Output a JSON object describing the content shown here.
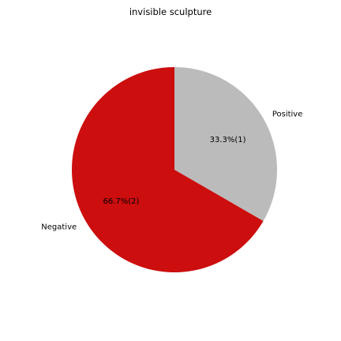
{
  "chart_data": {
    "type": "pie",
    "title": "invisible sculpture",
    "slices": [
      {
        "label": "Positive",
        "value": 1,
        "percent_label": "33.3%(1)",
        "color": "#bbbbbb"
      },
      {
        "label": "Negative",
        "value": 2,
        "percent_label": "66.7%(2)",
        "color": "#cc0e0e"
      }
    ],
    "start_angle_deg": 90,
    "direction": "clockwise",
    "legend": "none"
  }
}
